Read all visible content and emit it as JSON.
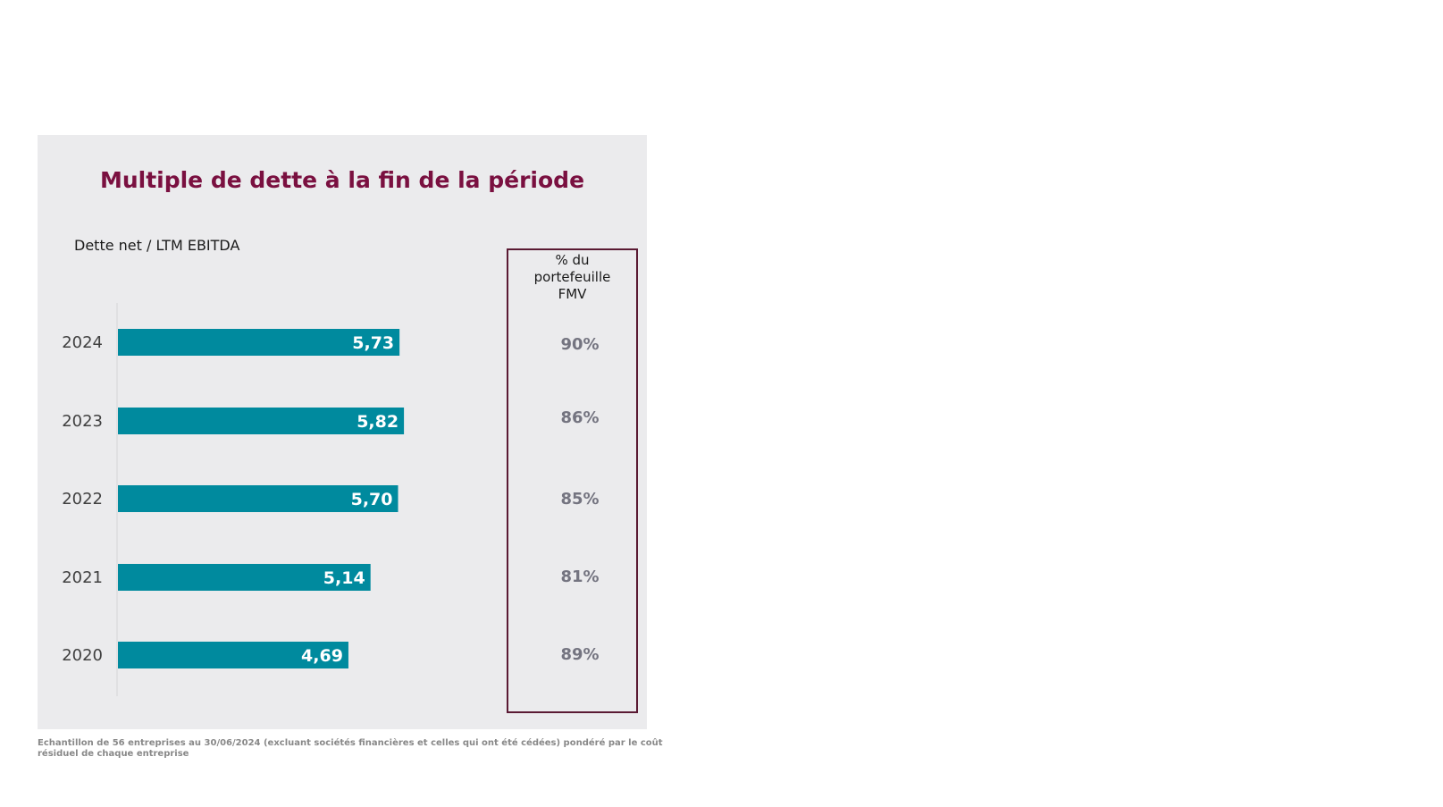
{
  "chart_data": {
    "type": "bar",
    "orientation": "horizontal",
    "title": "Multiple de dette à la fin de la période",
    "ylabel": "Dette net / LTM EBITDA",
    "categories": [
      "2024",
      "2023",
      "2022",
      "2021",
      "2020"
    ],
    "values": [
      5.73,
      5.82,
      5.7,
      5.14,
      4.69
    ],
    "value_labels": [
      "5,73",
      "5,82",
      "5,70",
      "5,14",
      "4,69"
    ],
    "xlim": [
      0,
      10
    ],
    "grid": false,
    "bar_color": "#008a9e",
    "portfolio_share": {
      "header": "% du\nportefeuille\nFMV",
      "values": [
        "90%",
        "86%",
        "85%",
        "81%",
        "89%"
      ]
    }
  },
  "footnote": "Echantillon de 56 entreprises au 30/06/2024 (excluant sociétés financières et celles qui ont été cédées) pondéré par le coût résiduel de chaque entreprise",
  "colors": {
    "title": "#7a1040",
    "panel_background": "#ebebed",
    "share_border": "#5a1a33",
    "share_text": "#747480",
    "year_text": "#404040"
  }
}
